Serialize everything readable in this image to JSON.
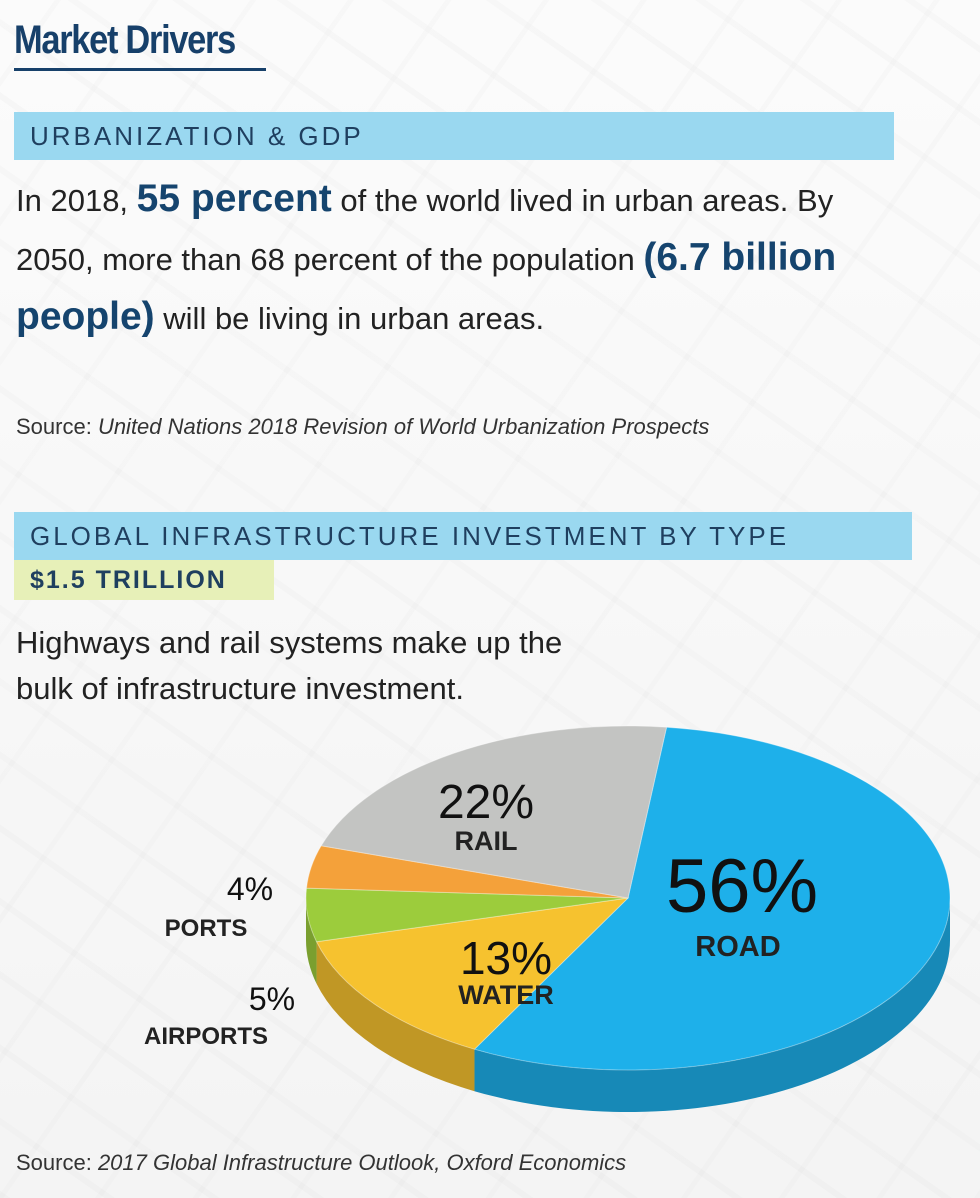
{
  "title": "Market Drivers",
  "section1": {
    "heading": "URBANIZATION & GDP",
    "text": [
      "In 2018, ",
      "55 percent",
      " of the world lived in urban areas. By 2050, more than 68 percent of the population ",
      "(6.7 billion people)",
      " will be living in urban areas."
    ],
    "source_prefix": "Source: ",
    "source_title": "United Nations 2018 Revision of World Urbanization Prospects"
  },
  "section2": {
    "heading": "GLOBAL INFRASTRUCTURE INVESTMENT BY TYPE",
    "total": "$1.5 TRILLION",
    "text": "Highways and rail systems make up the bulk of infrastructure investment.",
    "source_prefix": "Source: ",
    "source_title": "2017 Global Infrastructure Outlook, Oxford Economics"
  },
  "chart_data": {
    "type": "pie",
    "title": "",
    "slices": [
      {
        "label": "ROAD",
        "value": 56,
        "display": "56%",
        "color": "#1eb0ea"
      },
      {
        "label": "WATER",
        "value": 13,
        "display": "13%",
        "color": "#f6c22f"
      },
      {
        "label": "AIRPORTS",
        "value": 5,
        "display": "5%",
        "color": "#9ccc3c"
      },
      {
        "label": "PORTS",
        "value": 4,
        "display": "4%",
        "color": "#f4a13a"
      },
      {
        "label": "RAIL",
        "value": 22,
        "display": "22%",
        "color": "#c3c4c2"
      }
    ]
  }
}
